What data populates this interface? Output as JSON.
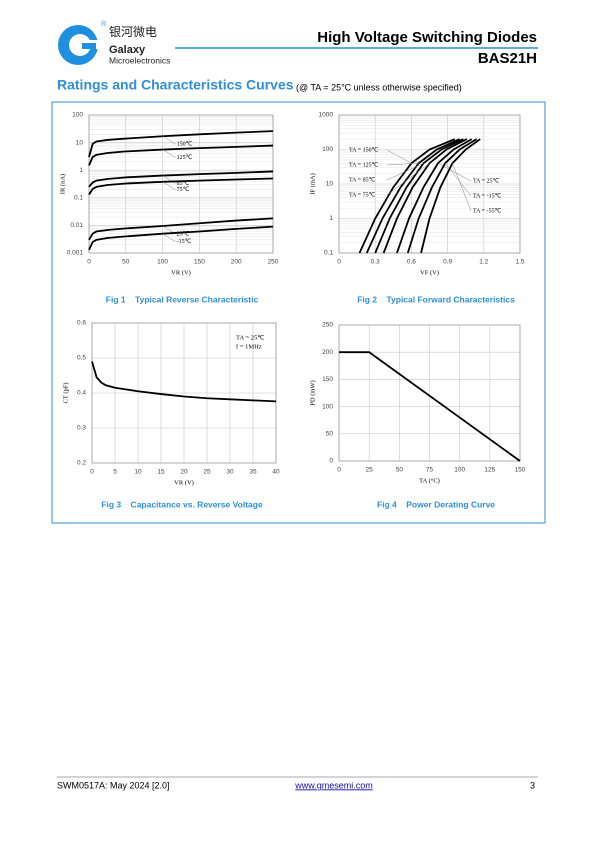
{
  "header": {
    "logo_cn": "银河微电",
    "logo_en": "Galaxy",
    "logo_sub": "Microelectronics",
    "registered": "®",
    "title": "High Voltage Switching Diodes",
    "part": "BAS21H"
  },
  "section": {
    "title": "Ratings and Characteristics Curves",
    "note": "(@ TA = 25°C unless otherwise specified)"
  },
  "chart_data": [
    {
      "type": "line",
      "title": "Fig 1    Typical Reverse Characteristic",
      "xlabel": "VR (V)",
      "ylabel": "IR (nA)",
      "yscale": "log",
      "grid": true,
      "xlim": [
        0,
        250
      ],
      "xticks": [
        0,
        50,
        100,
        150,
        200,
        250
      ],
      "ylim": [
        0.001,
        100
      ],
      "yticks": [
        0.001,
        0.01,
        0.1,
        1,
        10,
        100
      ],
      "x": [
        0,
        5,
        10,
        25,
        50,
        100,
        150,
        200,
        250
      ],
      "series": [
        {
          "name": "150℃",
          "color": "#000000",
          "values": [
            3,
            9,
            11,
            12.5,
            14,
            17,
            20,
            23,
            26
          ]
        },
        {
          "name": "125℃",
          "color": "#000000",
          "values": [
            1.5,
            3,
            3.6,
            4.2,
            4.8,
            5.6,
            6.3,
            7,
            7.8
          ]
        },
        {
          "name": "85℃",
          "color": "#000000",
          "values": [
            0.25,
            0.36,
            0.42,
            0.48,
            0.55,
            0.64,
            0.72,
            0.8,
            0.9
          ]
        },
        {
          "name": "75℃",
          "color": "#000000",
          "values": [
            0.13,
            0.21,
            0.25,
            0.29,
            0.33,
            0.38,
            0.42,
            0.46,
            0.5
          ]
        },
        {
          "name": "25℃",
          "color": "#000000",
          "values": [
            0.003,
            0.005,
            0.006,
            0.0068,
            0.0078,
            0.0095,
            0.012,
            0.015,
            0.018
          ]
        },
        {
          "name": "-15℃",
          "color": "#000000",
          "values": [
            0.0013,
            0.0025,
            0.003,
            0.0035,
            0.004,
            0.005,
            0.006,
            0.0075,
            0.009
          ]
        }
      ]
    },
    {
      "type": "line",
      "title": "Fig 2    Typical Forward Characteristics",
      "xlabel": "VF (V)",
      "ylabel": "IF (mA)",
      "yscale": "log",
      "grid": true,
      "xlim": [
        0,
        1.5
      ],
      "xticks": [
        0,
        0.3,
        0.6,
        0.9,
        1.2,
        1.5
      ],
      "ylim": [
        0.1,
        1000
      ],
      "yticks": [
        0.1,
        1,
        10,
        100,
        1000
      ],
      "series": [
        {
          "name": "TA = 150℃",
          "color": "#000000",
          "x": [
            0.17,
            0.3,
            0.45,
            0.6,
            0.75,
            0.96
          ],
          "values": [
            0.1,
            1,
            8,
            40,
            100,
            200
          ]
        },
        {
          "name": "TA = 125℃",
          "color": "#000000",
          "x": [
            0.23,
            0.36,
            0.51,
            0.66,
            0.81,
            1.0
          ],
          "values": [
            0.1,
            1,
            8,
            40,
            100,
            200
          ]
        },
        {
          "name": "TA = 85℃",
          "color": "#000000",
          "x": [
            0.3,
            0.42,
            0.56,
            0.7,
            0.85,
            1.03
          ],
          "values": [
            0.1,
            1,
            8,
            40,
            100,
            200
          ]
        },
        {
          "name": "TA = 75℃",
          "color": "#000000",
          "x": [
            0.37,
            0.48,
            0.61,
            0.75,
            0.89,
            1.06
          ],
          "values": [
            0.1,
            1,
            8,
            40,
            100,
            200
          ]
        },
        {
          "name": "TA = 25℃",
          "color": "#000000",
          "x": [
            0.48,
            0.58,
            0.7,
            0.82,
            0.95,
            1.1
          ],
          "values": [
            0.1,
            1,
            8,
            40,
            100,
            200
          ]
        },
        {
          "name": "TA = -15℃",
          "color": "#000000",
          "x": [
            0.57,
            0.66,
            0.77,
            0.88,
            1.0,
            1.14
          ],
          "values": [
            0.1,
            1,
            8,
            40,
            100,
            200
          ]
        },
        {
          "name": "TA = -55℃",
          "color": "#000000",
          "x": [
            0.68,
            0.75,
            0.84,
            0.94,
            1.05,
            1.17
          ],
          "values": [
            0.1,
            1,
            8,
            40,
            100,
            200
          ]
        }
      ]
    },
    {
      "type": "line",
      "title": "Fig 3    Capacitance vs. Reverse Voltage",
      "xlabel": "VR (V)",
      "ylabel": "CT (pF)",
      "grid": true,
      "xlim": [
        0,
        40
      ],
      "xticks": [
        0,
        5,
        10,
        15,
        20,
        25,
        30,
        35,
        40
      ],
      "ylim": [
        0.2,
        0.6
      ],
      "yticks": [
        0.2,
        0.3,
        0.4,
        0.5,
        0.6
      ],
      "annotations": [
        "TA = 25℃",
        "f = 1MHz"
      ],
      "x": [
        0,
        1,
        2,
        3,
        5,
        10,
        15,
        20,
        25,
        30,
        35,
        40
      ],
      "series": [
        {
          "name": "CT",
          "color": "#000000",
          "values": [
            0.49,
            0.445,
            0.43,
            0.422,
            0.415,
            0.405,
            0.397,
            0.39,
            0.385,
            0.382,
            0.379,
            0.376
          ]
        }
      ]
    },
    {
      "type": "line",
      "title": "Fig 4    Power Derating Curve",
      "xlabel": "TA (°C)",
      "ylabel": "PD (mW)",
      "grid": true,
      "xlim": [
        0,
        150
      ],
      "xticks": [
        0,
        25,
        50,
        75,
        100,
        125,
        150
      ],
      "ylim": [
        0,
        250
      ],
      "yticks": [
        0,
        50,
        100,
        150,
        200,
        250
      ],
      "x": [
        0,
        25,
        150
      ],
      "series": [
        {
          "name": "PD",
          "color": "#000000",
          "values": [
            200,
            200,
            0
          ]
        }
      ]
    }
  ],
  "footer": {
    "doc": "SWM0517A: May 2024 [2.0]",
    "url": "www.gmesemi.com",
    "page": "3"
  }
}
